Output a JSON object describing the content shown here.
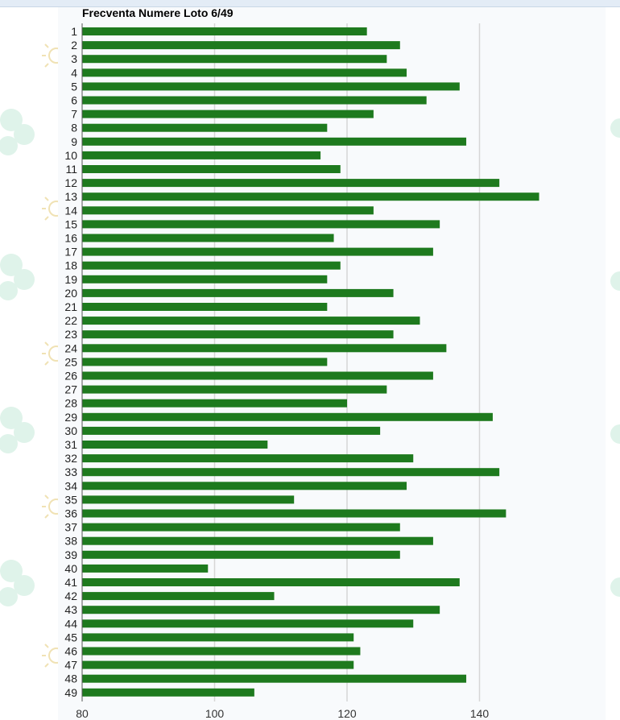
{
  "colors": {
    "bar": "#1e7a1e",
    "grid": "#d6d6d6",
    "axis": "#555555",
    "panel_background": "#f8fafc",
    "decoration_flower": "#dff3ea",
    "decoration_sun": "#f0e2b4"
  },
  "decoration": {
    "left_icons": [
      "sun-icon",
      "flower-icon"
    ],
    "right_icons": [
      "flower-icon"
    ]
  },
  "chart_data": {
    "type": "bar",
    "orientation": "horizontal",
    "title": "Frecventa Numere Loto 6/49",
    "xlabel": "",
    "ylabel": "",
    "grid": true,
    "legend": "none",
    "xlim": [
      80,
      160
    ],
    "x_ticks": [
      80,
      100,
      120,
      140
    ],
    "categories": [
      "1",
      "2",
      "3",
      "4",
      "5",
      "6",
      "7",
      "8",
      "9",
      "10",
      "11",
      "12",
      "13",
      "14",
      "15",
      "16",
      "17",
      "18",
      "19",
      "20",
      "21",
      "22",
      "23",
      "24",
      "25",
      "26",
      "27",
      "28",
      "29",
      "30",
      "31",
      "32",
      "33",
      "34",
      "35",
      "36",
      "37",
      "38",
      "39",
      "40",
      "41",
      "42",
      "43",
      "44",
      "45",
      "46",
      "47",
      "48",
      "49"
    ],
    "series": [
      {
        "values": [
          123,
          128,
          126,
          129,
          137,
          132,
          124,
          117,
          138,
          116,
          119,
          143,
          149,
          124,
          134,
          118,
          133,
          119,
          117,
          127,
          117,
          131,
          127,
          135,
          117,
          133,
          126,
          120,
          142,
          125,
          108,
          130,
          143,
          129,
          112,
          144,
          128,
          133,
          128,
          99,
          137,
          109,
          134,
          130,
          121,
          122,
          121,
          138,
          106
        ]
      }
    ]
  }
}
